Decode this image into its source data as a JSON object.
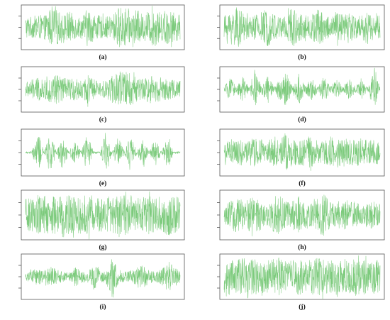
{
  "colors": {
    "waveform": "#7dcb7d",
    "axis": "#555555",
    "label": "#111111",
    "background": "#ffffff"
  },
  "chart_data": [
    {
      "type": "line",
      "label": "(a)",
      "envelope": [
        0.55,
        0.5,
        0.6,
        0.55,
        0.9,
        0.85,
        0.6,
        0.8,
        0.55,
        0.5,
        0.9,
        0.65,
        0.55,
        0.5,
        0.55,
        0.95,
        1.0,
        0.7,
        0.85,
        0.6,
        0.75,
        0.9,
        0.65,
        0.85,
        0.7,
        0.6
      ],
      "grid": false,
      "legend": "none",
      "ticks": 3
    },
    {
      "type": "line",
      "label": "(b)",
      "envelope": [
        0.55,
        0.8,
        0.95,
        0.7,
        0.5,
        0.6,
        0.75,
        0.9,
        0.65,
        0.55,
        0.8,
        0.95,
        0.7,
        0.55,
        0.65,
        0.9,
        0.7,
        0.55,
        0.75,
        0.6,
        0.85,
        0.55,
        0.6,
        0.8,
        0.55,
        0.6
      ],
      "grid": false,
      "legend": "none",
      "ticks": 3
    },
    {
      "type": "line",
      "label": "(c)",
      "envelope": [
        0.35,
        0.45,
        0.55,
        0.4,
        0.65,
        0.75,
        0.6,
        0.45,
        0.55,
        0.4,
        0.7,
        0.5,
        0.35,
        0.4,
        0.65,
        0.8,
        0.95,
        0.75,
        0.6,
        0.5,
        0.65,
        0.6,
        0.55,
        0.5,
        0.45,
        0.4
      ],
      "grid": false,
      "legend": "none",
      "ticks": 3
    },
    {
      "type": "line",
      "label": "(d)",
      "envelope": [
        0.1,
        0.55,
        0.15,
        0.6,
        0.1,
        0.85,
        0.15,
        0.7,
        0.1,
        0.55,
        0.8,
        0.1,
        0.75,
        0.15,
        0.6,
        0.1,
        0.65,
        0.15,
        0.55,
        0.1,
        0.5,
        0.15,
        0.45,
        0.1,
        0.95,
        0.1
      ],
      "grid": false,
      "legend": "none",
      "ticks": 3
    },
    {
      "type": "line",
      "label": "(e)",
      "envelope": [
        0.05,
        0.05,
        0.95,
        0.05,
        0.85,
        0.05,
        0.8,
        0.05,
        0.6,
        0.05,
        0.9,
        0.05,
        0.05,
        0.85,
        0.05,
        0.75,
        0.05,
        0.8,
        0.05,
        0.6,
        0.05,
        0.7,
        0.05,
        0.75,
        0.05,
        0.05
      ],
      "grid": false,
      "legend": "none",
      "ticks": 3
    },
    {
      "type": "line",
      "label": "(f)",
      "envelope": [
        0.45,
        0.55,
        0.5,
        0.65,
        0.55,
        0.7,
        0.6,
        0.55,
        0.75,
        0.6,
        0.85,
        0.55,
        0.65,
        0.6,
        0.7,
        0.55,
        0.6,
        0.75,
        0.55,
        0.65,
        0.6,
        0.55,
        0.7,
        0.55,
        0.6,
        0.5
      ],
      "grid": false,
      "legend": "none",
      "ticks": 3
    },
    {
      "type": "line",
      "label": "(g)",
      "envelope": [
        0.7,
        0.75,
        0.8,
        0.85,
        0.75,
        0.9,
        0.8,
        0.85,
        0.75,
        0.8,
        0.9,
        0.85,
        0.8,
        0.75,
        0.85,
        0.8,
        0.9,
        0.85,
        0.75,
        0.8,
        0.85,
        0.8,
        0.75,
        0.85,
        0.8,
        0.75
      ],
      "grid": false,
      "legend": "none",
      "ticks": 3
    },
    {
      "type": "line",
      "label": "(h)",
      "envelope": [
        0.35,
        0.6,
        0.8,
        0.55,
        0.7,
        0.9,
        0.6,
        0.45,
        0.75,
        0.85,
        0.55,
        0.65,
        0.8,
        0.6,
        0.5,
        0.75,
        0.9,
        0.6,
        0.55,
        0.7,
        0.5,
        0.65,
        0.45,
        0.55,
        0.6,
        0.5
      ],
      "grid": false,
      "legend": "none",
      "ticks": 3
    },
    {
      "type": "line",
      "label": "(i)",
      "envelope": [
        0.15,
        0.3,
        0.4,
        0.25,
        0.55,
        0.35,
        0.25,
        0.2,
        0.45,
        0.3,
        0.25,
        0.6,
        0.35,
        0.3,
        0.95,
        0.35,
        0.25,
        0.3,
        0.4,
        0.55,
        0.3,
        0.25,
        0.35,
        0.7,
        0.5,
        0.3
      ],
      "grid": false,
      "legend": "none",
      "ticks": 3
    },
    {
      "type": "line",
      "label": "(j)",
      "envelope": [
        0.8,
        0.85,
        0.75,
        0.9,
        0.8,
        0.85,
        0.75,
        0.8,
        0.85,
        0.9,
        0.75,
        0.8,
        0.85,
        0.75,
        0.8,
        0.9,
        0.85,
        0.8,
        0.75,
        0.85,
        0.8,
        0.9,
        0.75,
        0.85,
        0.8,
        0.75
      ],
      "grid": false,
      "legend": "none",
      "ticks": 3
    }
  ]
}
